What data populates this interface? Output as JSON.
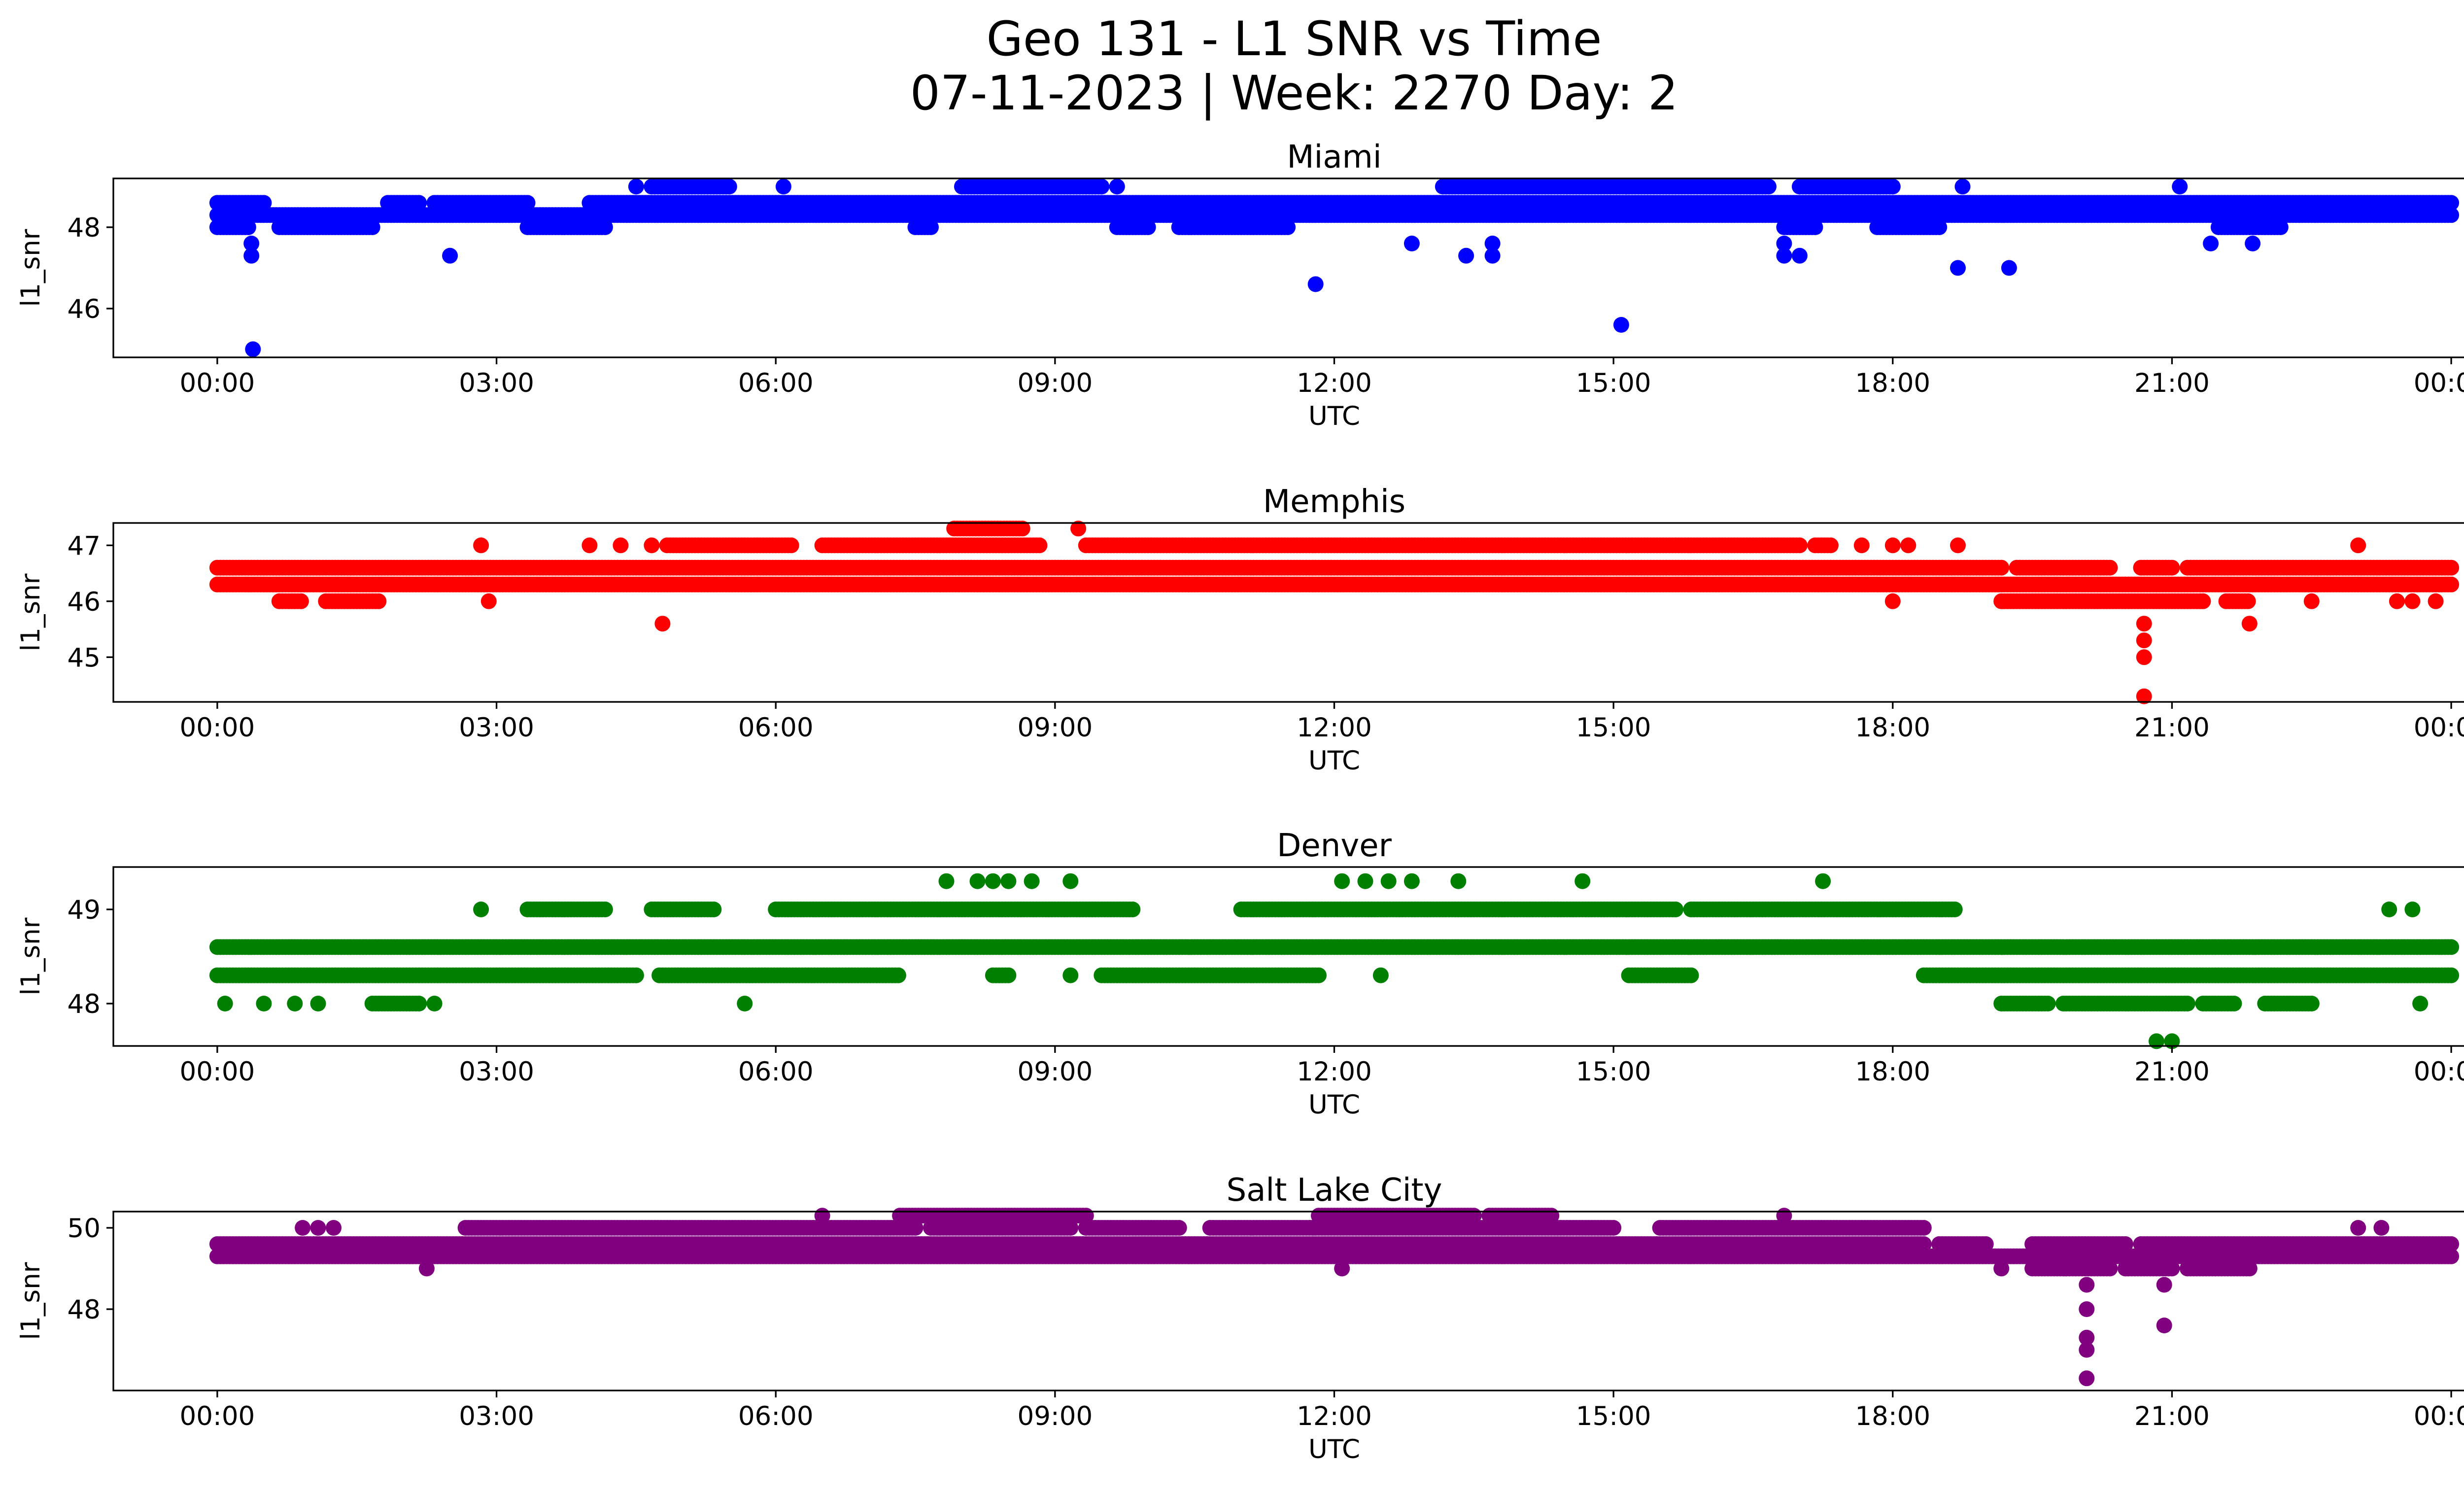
{
  "figure": {
    "title_line1": "Geo 131 - L1 SNR vs Time",
    "title_line2": "07-11-2023 | Week: 2270 Day: 2"
  },
  "chart_data": [
    {
      "type": "scatter",
      "title": "Miami",
      "xlabel": "UTC",
      "ylabel": "l1_snr",
      "color": "#0000ff",
      "xlim": [
        "-01:07",
        "25:07"
      ],
      "ylim": [
        44.8,
        49.2
      ],
      "x_ticks": [
        "00:00",
        "03:00",
        "06:00",
        "09:00",
        "12:00",
        "15:00",
        "18:00",
        "21:00",
        "00:00"
      ],
      "y_ticks": [
        46,
        48
      ],
      "series": [
        {
          "bands": [
            {
              "y": 48.3,
              "ranges": [
                [
                  "00:00",
                  "24:00"
                ]
              ]
            },
            {
              "y": 48.6,
              "ranges": [
                [
                  "00:00",
                  "00:30"
                ],
                [
                  "01:50",
                  "02:10"
                ],
                [
                  "02:20",
                  "03:20"
                ],
                [
                  "04:00",
                  "24:00"
                ]
              ]
            },
            {
              "y": 48.0,
              "ranges": [
                [
                  "00:00",
                  "00:20"
                ],
                [
                  "00:40",
                  "01:40"
                ],
                [
                  "03:20",
                  "04:10"
                ],
                [
                  "07:30",
                  "07:40"
                ],
                [
                  "09:40",
                  "10:00"
                ],
                [
                  "10:20",
                  "11:30"
                ],
                [
                  "16:50",
                  "17:10"
                ],
                [
                  "17:50",
                  "18:30"
                ],
                [
                  "21:30",
                  "22:10"
                ]
              ]
            },
            {
              "y": 49.0,
              "ranges": [
                [
                  "04:40",
                  "05:30"
                ],
                [
                  "08:00",
                  "09:30"
                ],
                [
                  "13:10",
                  "16:40"
                ],
                [
                  "17:00",
                  "18:00"
                ]
              ]
            }
          ],
          "points": [
            {
              "x": "00:23",
              "y": 45.0
            },
            {
              "x": "00:22",
              "y": 47.3
            },
            {
              "x": "00:22",
              "y": 47.6
            },
            {
              "x": "02:30",
              "y": 47.3
            },
            {
              "x": "11:48",
              "y": 46.6
            },
            {
              "x": "12:50",
              "y": 47.6
            },
            {
              "x": "13:25",
              "y": 47.3
            },
            {
              "x": "13:42",
              "y": 47.3
            },
            {
              "x": "13:42",
              "y": 47.6
            },
            {
              "x": "15:05",
              "y": 45.6
            },
            {
              "x": "16:50",
              "y": 47.3
            },
            {
              "x": "16:50",
              "y": 47.6
            },
            {
              "x": "17:00",
              "y": 47.3
            },
            {
              "x": "18:42",
              "y": 47.0
            },
            {
              "x": "19:15",
              "y": 47.0
            },
            {
              "x": "21:25",
              "y": 47.6
            },
            {
              "x": "21:52",
              "y": 47.6
            },
            {
              "x": "04:30",
              "y": 49.0
            },
            {
              "x": "06:05",
              "y": 49.0
            },
            {
              "x": "09:40",
              "y": 49.0
            },
            {
              "x": "18:45",
              "y": 49.0
            },
            {
              "x": "21:05",
              "y": 49.0
            }
          ]
        }
      ]
    },
    {
      "type": "scatter",
      "title": "Memphis",
      "xlabel": "UTC",
      "ylabel": "l1_snr",
      "color": "#ff0000",
      "xlim": [
        "-01:07",
        "25:07"
      ],
      "ylim": [
        44.2,
        47.4
      ],
      "x_ticks": [
        "00:00",
        "03:00",
        "06:00",
        "09:00",
        "12:00",
        "15:00",
        "18:00",
        "21:00",
        "00:00"
      ],
      "y_ticks": [
        45,
        46,
        47
      ],
      "series": [
        {
          "bands": [
            {
              "y": 46.3,
              "ranges": [
                [
                  "00:00",
                  "24:00"
                ]
              ]
            },
            {
              "y": 46.6,
              "ranges": [
                [
                  "00:00",
                  "19:10"
                ],
                [
                  "19:20",
                  "20:20"
                ],
                [
                  "20:40",
                  "21:00"
                ],
                [
                  "21:10",
                  "24:00"
                ]
              ]
            },
            {
              "y": 46.0,
              "ranges": [
                [
                  "00:40",
                  "00:55"
                ],
                [
                  "01:10",
                  "01:45"
                ],
                [
                  "19:10",
                  "21:20"
                ],
                [
                  "21:35",
                  "21:50"
                ]
              ]
            },
            {
              "y": 47.0,
              "ranges": [
                [
                  "04:50",
                  "06:10"
                ],
                [
                  "06:30",
                  "08:50"
                ],
                [
                  "09:20",
                  "17:00"
                ],
                [
                  "17:10",
                  "17:20"
                ]
              ]
            },
            {
              "y": 47.3,
              "ranges": [
                [
                  "07:55",
                  "08:40"
                ]
              ]
            }
          ],
          "points": [
            {
              "x": "02:50",
              "y": 47.0
            },
            {
              "x": "04:00",
              "y": 47.0
            },
            {
              "x": "04:20",
              "y": 47.0
            },
            {
              "x": "04:40",
              "y": 47.0
            },
            {
              "x": "04:47",
              "y": 45.6
            },
            {
              "x": "02:55",
              "y": 46.0
            },
            {
              "x": "09:15",
              "y": 47.3
            },
            {
              "x": "17:40",
              "y": 47.0
            },
            {
              "x": "18:00",
              "y": 47.0
            },
            {
              "x": "18:10",
              "y": 47.0
            },
            {
              "x": "18:42",
              "y": 47.0
            },
            {
              "x": "18:00",
              "y": 46.0
            },
            {
              "x": "20:42",
              "y": 45.6
            },
            {
              "x": "20:42",
              "y": 45.3
            },
            {
              "x": "20:42",
              "y": 45.0
            },
            {
              "x": "20:42",
              "y": 44.3
            },
            {
              "x": "21:50",
              "y": 45.6
            },
            {
              "x": "23:00",
              "y": 47.0
            },
            {
              "x": "23:25",
              "y": 46.0
            },
            {
              "x": "23:35",
              "y": 46.0
            },
            {
              "x": "23:50",
              "y": 46.0
            },
            {
              "x": "22:30",
              "y": 46.0
            }
          ]
        }
      ]
    },
    {
      "type": "scatter",
      "title": "Denver",
      "xlabel": "UTC",
      "ylabel": "l1_snr",
      "color": "#008000",
      "xlim": [
        "-01:07",
        "25:07"
      ],
      "ylim": [
        47.55,
        49.45
      ],
      "x_ticks": [
        "00:00",
        "03:00",
        "06:00",
        "09:00",
        "12:00",
        "15:00",
        "18:00",
        "21:00",
        "00:00"
      ],
      "y_ticks": [
        48,
        49
      ],
      "series": [
        {
          "bands": [
            {
              "y": 48.6,
              "ranges": [
                [
                  "00:00",
                  "24:00"
                ]
              ]
            },
            {
              "y": 48.3,
              "ranges": [
                [
                  "00:00",
                  "04:30"
                ],
                [
                  "04:45",
                  "07:20"
                ],
                [
                  "08:20",
                  "08:30"
                ],
                [
                  "09:30",
                  "11:50"
                ],
                [
                  "15:10",
                  "15:50"
                ],
                [
                  "18:20",
                  "24:00"
                ]
              ]
            },
            {
              "y": 49.0,
              "ranges": [
                [
                  "03:20",
                  "04:10"
                ],
                [
                  "04:40",
                  "05:20"
                ],
                [
                  "06:00",
                  "09:50"
                ],
                [
                  "11:00",
                  "15:40"
                ],
                [
                  "15:50",
                  "18:40"
                ]
              ]
            },
            {
              "y": 48.0,
              "ranges": [
                [
                  "01:40",
                  "02:10"
                ],
                [
                  "19:10",
                  "19:40"
                ],
                [
                  "19:50",
                  "21:10"
                ],
                [
                  "21:20",
                  "21:40"
                ],
                [
                  "22:00",
                  "22:30"
                ]
              ]
            }
          ],
          "points": [
            {
              "x": "00:05",
              "y": 48.0
            },
            {
              "x": "00:30",
              "y": 48.0
            },
            {
              "x": "00:50",
              "y": 48.0
            },
            {
              "x": "01:05",
              "y": 48.0
            },
            {
              "x": "02:20",
              "y": 48.0
            },
            {
              "x": "05:40",
              "y": 48.0
            },
            {
              "x": "02:50",
              "y": 49.0
            },
            {
              "x": "07:50",
              "y": 49.3
            },
            {
              "x": "08:10",
              "y": 49.3
            },
            {
              "x": "08:20",
              "y": 49.3
            },
            {
              "x": "08:30",
              "y": 49.3
            },
            {
              "x": "08:45",
              "y": 49.3
            },
            {
              "x": "09:10",
              "y": 49.3
            },
            {
              "x": "12:05",
              "y": 49.3
            },
            {
              "x": "12:20",
              "y": 49.3
            },
            {
              "x": "12:35",
              "y": 49.3
            },
            {
              "x": "12:50",
              "y": 49.3
            },
            {
              "x": "13:20",
              "y": 49.3
            },
            {
              "x": "14:40",
              "y": 49.3
            },
            {
              "x": "17:15",
              "y": 49.3
            },
            {
              "x": "20:50",
              "y": 47.6
            },
            {
              "x": "21:00",
              "y": 47.6
            },
            {
              "x": "23:40",
              "y": 48.0
            },
            {
              "x": "23:20",
              "y": 49.0
            },
            {
              "x": "23:35",
              "y": 49.0
            },
            {
              "x": "09:10",
              "y": 48.3
            },
            {
              "x": "12:30",
              "y": 48.3
            }
          ]
        }
      ]
    },
    {
      "type": "scatter",
      "title": "Salt Lake City",
      "xlabel": "UTC",
      "ylabel": "l1_snr",
      "color": "#800080",
      "xlim": [
        "-01:07",
        "25:07"
      ],
      "ylim": [
        46.0,
        50.4
      ],
      "x_ticks": [
        "00:00",
        "03:00",
        "06:00",
        "09:00",
        "12:00",
        "15:00",
        "18:00",
        "21:00",
        "00:00"
      ],
      "y_ticks": [
        48,
        50
      ],
      "series": [
        {
          "bands": [
            {
              "y": 49.3,
              "ranges": [
                [
                  "00:00",
                  "24:00"
                ]
              ]
            },
            {
              "y": 49.6,
              "ranges": [
                [
                  "00:00",
                  "18:20"
                ],
                [
                  "18:30",
                  "19:00"
                ],
                [
                  "19:30",
                  "20:30"
                ],
                [
                  "20:40",
                  "24:00"
                ]
              ]
            },
            {
              "y": 50.0,
              "ranges": [
                [
                  "02:40",
                  "07:30"
                ],
                [
                  "07:40",
                  "09:10"
                ],
                [
                  "09:20",
                  "10:20"
                ],
                [
                  "10:40",
                  "15:00"
                ],
                [
                  "15:30",
                  "18:20"
                ]
              ]
            },
            {
              "y": 50.3,
              "ranges": [
                [
                  "07:20",
                  "09:20"
                ],
                [
                  "11:50",
                  "13:30"
                ],
                [
                  "13:40",
                  "14:20"
                ]
              ]
            },
            {
              "y": 49.0,
              "ranges": [
                [
                  "19:30",
                  "20:20"
                ],
                [
                  "20:30",
                  "21:00"
                ],
                [
                  "21:10",
                  "21:50"
                ]
              ]
            }
          ],
          "points": [
            {
              "x": "00:55",
              "y": 50.0
            },
            {
              "x": "01:05",
              "y": 50.0
            },
            {
              "x": "01:15",
              "y": 50.0
            },
            {
              "x": "02:15",
              "y": 49.0
            },
            {
              "x": "06:30",
              "y": 50.3
            },
            {
              "x": "11:15",
              "y": 49.3
            },
            {
              "x": "12:05",
              "y": 49.0
            },
            {
              "x": "16:50",
              "y": 50.3
            },
            {
              "x": "19:10",
              "y": 49.0
            },
            {
              "x": "20:05",
              "y": 48.6
            },
            {
              "x": "20:05",
              "y": 48.0
            },
            {
              "x": "20:05",
              "y": 47.3
            },
            {
              "x": "20:05",
              "y": 47.0
            },
            {
              "x": "20:05",
              "y": 46.3
            },
            {
              "x": "20:55",
              "y": 48.6
            },
            {
              "x": "20:55",
              "y": 47.6
            },
            {
              "x": "23:00",
              "y": 50.0
            },
            {
              "x": "23:15",
              "y": 50.0
            }
          ]
        }
      ]
    }
  ]
}
